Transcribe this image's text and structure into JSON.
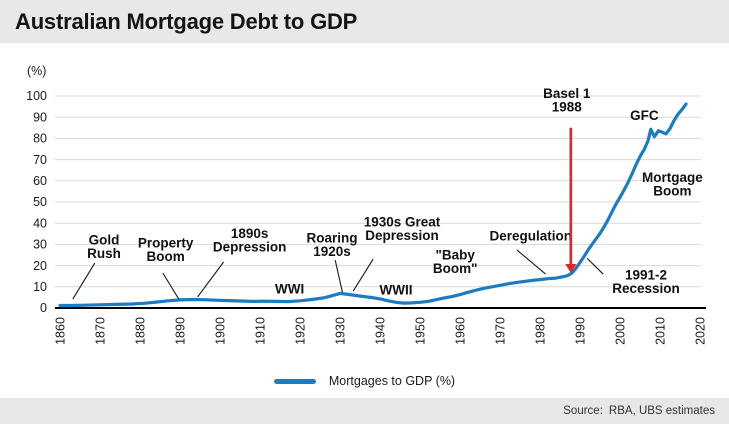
{
  "title": "Australian Mortgage Debt to GDP",
  "legend": {
    "label": "Mortgages to GDP (%)"
  },
  "footer": {
    "label": "Source:",
    "value": "RBA, UBS estimates"
  },
  "colors": {
    "line": "#1b7cc4",
    "arrow": "#e42528",
    "grid": "#d9d9d9",
    "axis": "#000000",
    "annotation_text": "#111111",
    "title_bar_bg": "#e8e8e8",
    "footer_bg": "#e7e7e7"
  },
  "chart_data": {
    "type": "line",
    "title": "Australian Mortgage Debt to GDP",
    "xlabel": "",
    "ylabel": "(%)",
    "xlim": [
      1860,
      2020
    ],
    "ylim": [
      0,
      100
    ],
    "x_ticks": [
      1860,
      1870,
      1880,
      1890,
      1900,
      1910,
      1920,
      1930,
      1940,
      1950,
      1960,
      1970,
      1980,
      1990,
      2000,
      2010,
      2020
    ],
    "y_ticks": [
      0,
      10,
      20,
      30,
      40,
      50,
      60,
      70,
      80,
      90,
      100
    ],
    "grid": "horizontal-light",
    "legend_position": "bottom-center",
    "series": [
      {
        "name": "Mortgages to GDP (%)",
        "color": "#1b7cc4",
        "points": [
          [
            1860,
            1.2
          ],
          [
            1863,
            1.2
          ],
          [
            1866,
            1.3
          ],
          [
            1870,
            1.5
          ],
          [
            1874,
            1.7
          ],
          [
            1878,
            1.9
          ],
          [
            1881,
            2.2
          ],
          [
            1884,
            2.8
          ],
          [
            1887,
            3.4
          ],
          [
            1890,
            3.8
          ],
          [
            1893,
            4.0
          ],
          [
            1896,
            3.9
          ],
          [
            1899,
            3.7
          ],
          [
            1902,
            3.5
          ],
          [
            1905,
            3.3
          ],
          [
            1908,
            3.1
          ],
          [
            1911,
            3.2
          ],
          [
            1914,
            3.1
          ],
          [
            1917,
            3.0
          ],
          [
            1920,
            3.4
          ],
          [
            1923,
            4.0
          ],
          [
            1926,
            4.8
          ],
          [
            1928,
            5.8
          ],
          [
            1930,
            6.9
          ],
          [
            1932,
            6.4
          ],
          [
            1934,
            5.9
          ],
          [
            1936,
            5.4
          ],
          [
            1938,
            4.9
          ],
          [
            1940,
            4.3
          ],
          [
            1942,
            3.4
          ],
          [
            1944,
            2.7
          ],
          [
            1946,
            2.3
          ],
          [
            1948,
            2.4
          ],
          [
            1950,
            2.7
          ],
          [
            1952,
            3.1
          ],
          [
            1954,
            3.9
          ],
          [
            1956,
            4.7
          ],
          [
            1958,
            5.4
          ],
          [
            1960,
            6.3
          ],
          [
            1962,
            7.4
          ],
          [
            1964,
            8.4
          ],
          [
            1966,
            9.3
          ],
          [
            1968,
            10.0
          ],
          [
            1970,
            10.7
          ],
          [
            1972,
            11.4
          ],
          [
            1974,
            12.0
          ],
          [
            1976,
            12.5
          ],
          [
            1978,
            13.0
          ],
          [
            1980,
            13.4
          ],
          [
            1982,
            13.8
          ],
          [
            1984,
            14.1
          ],
          [
            1986,
            14.8
          ],
          [
            1987,
            15.4
          ],
          [
            1988,
            16.5
          ],
          [
            1989,
            18.8
          ],
          [
            1990,
            21.5
          ],
          [
            1991,
            24.3
          ],
          [
            1992,
            27.3
          ],
          [
            1993,
            30.0
          ],
          [
            1994,
            32.6
          ],
          [
            1995,
            35.2
          ],
          [
            1996,
            38.2
          ],
          [
            1997,
            41.6
          ],
          [
            1998,
            45.4
          ],
          [
            1999,
            49.0
          ],
          [
            2000,
            52.2
          ],
          [
            2001,
            55.6
          ],
          [
            2002,
            59.2
          ],
          [
            2003,
            63.2
          ],
          [
            2004,
            67.6
          ],
          [
            2005,
            71.4
          ],
          [
            2006,
            74.6
          ],
          [
            2007,
            78.8
          ],
          [
            2007.7,
            84.3
          ],
          [
            2008.6,
            80.8
          ],
          [
            2009.6,
            83.6
          ],
          [
            2010.6,
            82.9
          ],
          [
            2011.5,
            82.1
          ],
          [
            2012.5,
            84.6
          ],
          [
            2013.5,
            88.4
          ],
          [
            2014.5,
            91.4
          ],
          [
            2015.5,
            93.6
          ],
          [
            2016.5,
            96.2
          ]
        ]
      }
    ],
    "annotations": [
      {
        "lines": [
          "Gold",
          "Rush"
        ],
        "x": 1871,
        "y": 29,
        "leader": [
          [
            1868.7,
            21.2
          ],
          [
            1863.2,
            4.2
          ]
        ]
      },
      {
        "lines": [
          "Property",
          "Boom"
        ],
        "x": 1886.4,
        "y": 27.5,
        "leader": [
          [
            1885.7,
            16.5
          ],
          [
            1889.7,
            4.2
          ]
        ]
      },
      {
        "lines": [
          "1890s",
          "Depression"
        ],
        "x": 1907.4,
        "y": 32,
        "leader": [
          [
            1900.9,
            21.7
          ],
          [
            1894.4,
            5.2
          ]
        ]
      },
      {
        "lines": [
          "WWI"
        ],
        "x": 1917.4,
        "y": 9
      },
      {
        "lines": [
          "Roaring",
          "1920s"
        ],
        "x": 1928,
        "y": 30,
        "leader": [
          [
            1928.8,
            22.6
          ],
          [
            1930.6,
            7.5
          ]
        ]
      },
      {
        "lines": [
          "1930s Great",
          "Depression"
        ],
        "x": 1945.5,
        "y": 37.5,
        "leader": [
          [
            1938.3,
            23.1
          ],
          [
            1933.3,
            8.0
          ]
        ]
      },
      {
        "lines": [
          "WWII"
        ],
        "x": 1944,
        "y": 8.5
      },
      {
        "lines": [
          "\"Baby",
          "Boom\""
        ],
        "x": 1958.8,
        "y": 22
      },
      {
        "lines": [
          "Deregulation"
        ],
        "x": 1977.7,
        "y": 34,
        "leader": [
          [
            1974.2,
            27.4
          ],
          [
            1981.4,
            16.0
          ]
        ]
      },
      {
        "lines": [
          "GFC"
        ],
        "x": 2006.1,
        "y": 91
      },
      {
        "lines": [
          "Mortgage",
          "Boom"
        ],
        "x": 2013.1,
        "y": 58.5
      },
      {
        "lines": [
          "1991-2",
          "Recession"
        ],
        "x": 2006.5,
        "y": 12.5,
        "leader": [
          [
            1991.8,
            23.4
          ],
          [
            1995.8,
            16.0
          ]
        ]
      }
    ],
    "arrow_annotation": {
      "label_lines": [
        "Basel 1",
        "1988"
      ],
      "label_x": 1986.7,
      "label_y": 98,
      "arrow_x": 1987.7,
      "arrow_from_y": 85,
      "arrow_to_y": 16.5,
      "color": "#e42528"
    }
  }
}
